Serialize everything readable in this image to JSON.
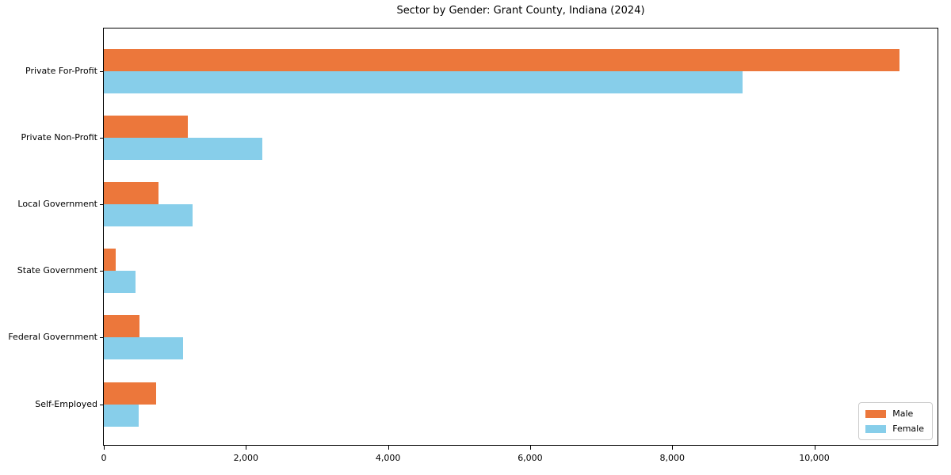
{
  "chart_data": {
    "type": "bar",
    "orientation": "horizontal",
    "title": "Sector by Gender: Grant County, Indiana (2024)",
    "categories": [
      "Private For-Profit",
      "Private Non-Profit",
      "Local Government",
      "State Government",
      "Federal Government",
      "Self-Employed"
    ],
    "series": [
      {
        "name": "Male",
        "color": "#ec773b",
        "values": [
          11200,
          1180,
          770,
          170,
          500,
          740
        ]
      },
      {
        "name": "Female",
        "color": "#87ceea",
        "values": [
          8990,
          2230,
          1250,
          450,
          1110,
          490
        ]
      }
    ],
    "xlabel": "",
    "ylabel": "",
    "xlim": [
      0,
      11756
    ],
    "xticks": [
      0,
      2000,
      4000,
      6000,
      8000,
      10000
    ],
    "xtick_labels": [
      "0",
      "2,000",
      "4,000",
      "6,000",
      "8,000",
      "10,000"
    ],
    "grid": false,
    "legend_position": "lower right",
    "background_color": "#ffffff",
    "axis_color": "#000000"
  }
}
